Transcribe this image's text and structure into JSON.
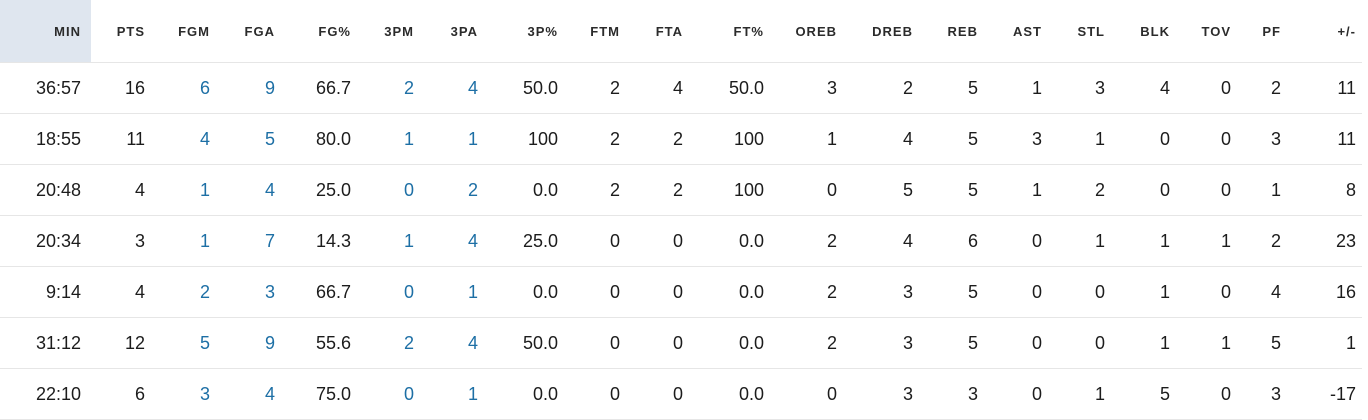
{
  "columns": [
    {
      "key": "min",
      "label": "MIN",
      "link": false
    },
    {
      "key": "pts",
      "label": "PTS",
      "link": false
    },
    {
      "key": "fgm",
      "label": "FGM",
      "link": true
    },
    {
      "key": "fga",
      "label": "FGA",
      "link": true
    },
    {
      "key": "fg_pct",
      "label": "FG%",
      "link": false
    },
    {
      "key": "3pm",
      "label": "3PM",
      "link": true
    },
    {
      "key": "3pa",
      "label": "3PA",
      "link": true
    },
    {
      "key": "3p_pct",
      "label": "3P%",
      "link": false
    },
    {
      "key": "ftm",
      "label": "FTM",
      "link": false
    },
    {
      "key": "fta",
      "label": "FTA",
      "link": false
    },
    {
      "key": "ft_pct",
      "label": "FT%",
      "link": false
    },
    {
      "key": "oreb",
      "label": "OREB",
      "link": false
    },
    {
      "key": "dreb",
      "label": "DREB",
      "link": false
    },
    {
      "key": "reb",
      "label": "REB",
      "link": false
    },
    {
      "key": "ast",
      "label": "AST",
      "link": false
    },
    {
      "key": "stl",
      "label": "STL",
      "link": false
    },
    {
      "key": "blk",
      "label": "BLK",
      "link": false
    },
    {
      "key": "tov",
      "label": "TOV",
      "link": false
    },
    {
      "key": "pf",
      "label": "PF",
      "link": false
    },
    {
      "key": "plus_minus",
      "label": "+/-",
      "link": false
    }
  ],
  "sorted_column": "min",
  "colors": {
    "link": "#1d6fa5",
    "sorted_header_bg": "#dfe6ef",
    "row_border": "#e6e6e6"
  },
  "rows": [
    [
      "36:57",
      "16",
      "6",
      "9",
      "66.7",
      "2",
      "4",
      "50.0",
      "2",
      "4",
      "50.0",
      "3",
      "2",
      "5",
      "1",
      "3",
      "4",
      "0",
      "2",
      "11"
    ],
    [
      "18:55",
      "11",
      "4",
      "5",
      "80.0",
      "1",
      "1",
      "100",
      "2",
      "2",
      "100",
      "1",
      "4",
      "5",
      "3",
      "1",
      "0",
      "0",
      "3",
      "11"
    ],
    [
      "20:48",
      "4",
      "1",
      "4",
      "25.0",
      "0",
      "2",
      "0.0",
      "2",
      "2",
      "100",
      "0",
      "5",
      "5",
      "1",
      "2",
      "0",
      "0",
      "1",
      "8"
    ],
    [
      "20:34",
      "3",
      "1",
      "7",
      "14.3",
      "1",
      "4",
      "25.0",
      "0",
      "0",
      "0.0",
      "2",
      "4",
      "6",
      "0",
      "1",
      "1",
      "1",
      "2",
      "23"
    ],
    [
      "9:14",
      "4",
      "2",
      "3",
      "66.7",
      "0",
      "1",
      "0.0",
      "0",
      "0",
      "0.0",
      "2",
      "3",
      "5",
      "0",
      "0",
      "1",
      "0",
      "4",
      "16"
    ],
    [
      "31:12",
      "12",
      "5",
      "9",
      "55.6",
      "2",
      "4",
      "50.0",
      "0",
      "0",
      "0.0",
      "2",
      "3",
      "5",
      "0",
      "0",
      "1",
      "1",
      "5",
      "1"
    ],
    [
      "22:10",
      "6",
      "3",
      "4",
      "75.0",
      "0",
      "1",
      "0.0",
      "0",
      "0",
      "0.0",
      "0",
      "3",
      "3",
      "0",
      "1",
      "5",
      "0",
      "3",
      "-17"
    ]
  ]
}
